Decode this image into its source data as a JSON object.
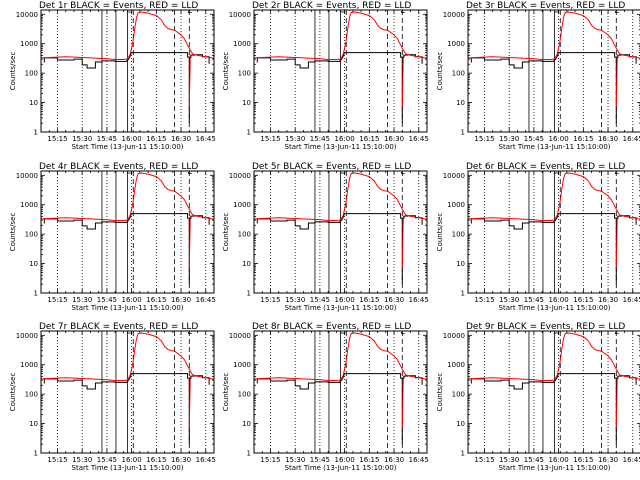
{
  "chart_data": [
    {
      "type": "line",
      "title": "Det 1r BLACK = Events, RED = LLD",
      "xlabel": "Start Time (13-Jun-11 15:10:00)",
      "ylabel": "Counts/sec",
      "x_ticks": [
        "15:15",
        "15:30",
        "15:45",
        "16:00",
        "16:15",
        "16:30",
        "16:45"
      ],
      "y_ticks": [
        "1",
        "10",
        "100",
        "1000",
        "10000"
      ],
      "y_scale": "log",
      "ylim": [
        1,
        14000
      ],
      "series": [
        {
          "name": "BLACK = Events",
          "color": "#000000"
        },
        {
          "name": "RED = LLD",
          "color": "#ff0000"
        }
      ]
    },
    {
      "type": "line",
      "title": "Det 2r BLACK = Events, RED = LLD",
      "xlabel": "Start Time (13-Jun-11 15:10:00)",
      "ylabel": "Counts/sec",
      "x_ticks": [
        "15:15",
        "15:30",
        "15:45",
        "16:00",
        "16:15",
        "16:30",
        "16:45"
      ],
      "y_ticks": [
        "1",
        "10",
        "100",
        "1000",
        "10000"
      ],
      "y_scale": "log",
      "ylim": [
        1,
        14000
      ],
      "series": [
        {
          "name": "BLACK = Events",
          "color": "#000000"
        },
        {
          "name": "RED = LLD",
          "color": "#ff0000"
        }
      ]
    },
    {
      "type": "line",
      "title": "Det 3r BLACK = Events, RED = LLD",
      "xlabel": "Start Time (13-Jun-11 15:10:00)",
      "ylabel": "Counts/sec",
      "x_ticks": [
        "15:15",
        "15:30",
        "15:45",
        "16:00",
        "16:15",
        "16:30",
        "16:45"
      ],
      "y_ticks": [
        "1",
        "10",
        "100",
        "1000",
        "10000"
      ],
      "y_scale": "log",
      "ylim": [
        1,
        14000
      ],
      "series": [
        {
          "name": "BLACK = Events",
          "color": "#000000"
        },
        {
          "name": "RED = LLD",
          "color": "#ff0000"
        }
      ]
    },
    {
      "type": "line",
      "title": "Det 4r BLACK = Events, RED = LLD",
      "xlabel": "Start Time (13-Jun-11 15:10:00)",
      "ylabel": "Counts/sec",
      "x_ticks": [
        "15:15",
        "15:30",
        "15:45",
        "16:00",
        "16:15",
        "16:30",
        "16:45"
      ],
      "y_ticks": [
        "1",
        "10",
        "100",
        "1000",
        "10000"
      ],
      "y_scale": "log",
      "ylim": [
        1,
        14000
      ],
      "series": [
        {
          "name": "BLACK = Events",
          "color": "#000000"
        },
        {
          "name": "RED = LLD",
          "color": "#ff0000"
        }
      ]
    },
    {
      "type": "line",
      "title": "Det 5r BLACK = Events, RED = LLD",
      "xlabel": "Start Time (13-Jun-11 15:10:00)",
      "ylabel": "Counts/sec",
      "x_ticks": [
        "15:15",
        "15:30",
        "15:45",
        "16:00",
        "16:15",
        "16:30",
        "16:45"
      ],
      "y_ticks": [
        "1",
        "10",
        "100",
        "1000",
        "10000"
      ],
      "y_scale": "log",
      "ylim": [
        1,
        14000
      ],
      "series": [
        {
          "name": "BLACK = Events",
          "color": "#000000"
        },
        {
          "name": "RED = LLD",
          "color": "#ff0000"
        }
      ]
    },
    {
      "type": "line",
      "title": "Det 6r BLACK = Events, RED = LLD",
      "xlabel": "Start Time (13-Jun-11 15:10:00)",
      "ylabel": "Counts/sec",
      "x_ticks": [
        "15:15",
        "15:30",
        "15:45",
        "16:00",
        "16:15",
        "16:30",
        "16:45"
      ],
      "y_ticks": [
        "1",
        "10",
        "100",
        "1000",
        "10000"
      ],
      "y_scale": "log",
      "ylim": [
        1,
        14000
      ],
      "series": [
        {
          "name": "BLACK = Events",
          "color": "#000000"
        },
        {
          "name": "RED = LLD",
          "color": "#ff0000"
        }
      ]
    },
    {
      "type": "line",
      "title": "Det 7r BLACK = Events, RED = LLD",
      "xlabel": "Start Time (13-Jun-11 15:10:00)",
      "ylabel": "Counts/sec",
      "x_ticks": [
        "15:15",
        "15:30",
        "15:45",
        "16:00",
        "16:15",
        "16:30",
        "16:45"
      ],
      "y_ticks": [
        "1",
        "10",
        "100",
        "1000",
        "10000"
      ],
      "y_scale": "log",
      "ylim": [
        1,
        14000
      ],
      "series": [
        {
          "name": "BLACK = Events",
          "color": "#000000"
        },
        {
          "name": "RED = LLD",
          "color": "#ff0000"
        }
      ]
    },
    {
      "type": "line",
      "title": "Det 8r BLACK = Events, RED = LLD",
      "xlabel": "Start Time (13-Jun-11 15:10:00)",
      "ylabel": "Counts/sec",
      "x_ticks": [
        "15:15",
        "15:30",
        "15:45",
        "16:00",
        "16:15",
        "16:30",
        "16:45"
      ],
      "y_ticks": [
        "1",
        "10",
        "100",
        "1000",
        "10000"
      ],
      "y_scale": "log",
      "ylim": [
        1,
        14000
      ],
      "series": [
        {
          "name": "BLACK = Events",
          "color": "#000000"
        },
        {
          "name": "RED = LLD",
          "color": "#ff0000"
        }
      ]
    },
    {
      "type": "line",
      "title": "Det 9r BLACK = Events, RED = LLD",
      "xlabel": "Start Time (13-Jun-11 15:10:00)",
      "ylabel": "Counts/sec",
      "x_ticks": [
        "15:15",
        "15:30",
        "15:45",
        "16:00",
        "16:15",
        "16:30",
        "16:45"
      ],
      "y_ticks": [
        "1",
        "10",
        "100",
        "1000",
        "10000"
      ],
      "y_scale": "log",
      "ylim": [
        1,
        14000
      ],
      "series": [
        {
          "name": "BLACK = Events",
          "color": "#000000"
        },
        {
          "name": "RED = LLD",
          "color": "#ff0000"
        }
      ]
    }
  ],
  "time_axis": {
    "ticks_min": [
      15,
      30,
      45,
      60,
      75,
      90,
      105
    ],
    "range_min": [
      5,
      110
    ]
  },
  "markers": {
    "dotted_vertical_min": [
      15,
      30,
      45,
      60,
      75,
      90,
      105
    ],
    "solid_vertical_min": [
      42,
      50.5,
      57.5
    ],
    "dashed_vertical_min": [
      61,
      86,
      95
    ]
  },
  "red_lld": {
    "t": [
      5,
      20,
      35,
      45,
      50,
      55,
      57,
      58,
      59,
      60,
      61,
      62,
      63,
      64,
      66,
      70,
      75,
      78,
      80,
      82,
      84,
      86,
      88,
      90,
      92,
      95,
      97,
      100,
      105,
      110
    ],
    "v": [
      330,
      360,
      330,
      310,
      290,
      290,
      300,
      340,
      420,
      700,
      1400,
      3500,
      8000,
      11500,
      12000,
      11000,
      9000,
      6500,
      4200,
      3300,
      3000,
      2900,
      2400,
      2000,
      1500,
      700,
      450,
      400,
      360,
      320
    ]
  },
  "black_events": {
    "t": [
      7,
      7,
      15,
      15,
      25,
      25,
      30,
      30,
      33,
      33,
      38,
      38,
      42,
      42,
      50,
      50,
      57,
      57,
      58,
      59,
      59.5,
      60,
      94,
      94,
      95,
      95,
      96,
      96,
      98,
      98,
      103,
      103,
      107,
      107
    ],
    "v": [
      230,
      330,
      330,
      280,
      280,
      300,
      300,
      190,
      190,
      150,
      150,
      240,
      240,
      260,
      260,
      250,
      250,
      260,
      290,
      360,
      430,
      500,
      500,
      350,
      350,
      340,
      340,
      410,
      410,
      420,
      420,
      360,
      360,
      210
    ]
  },
  "black_spikes": [
    {
      "t": 95,
      "v": 2
    }
  ],
  "red_segments": [
    {
      "t": [
        95,
        95.6
      ],
      "v": [
        7,
        400
      ]
    }
  ],
  "inset_markers": [
    {
      "t0": 57.5,
      "t1": 60.5,
      "v": 12000
    },
    {
      "t0": 94.5,
      "t1": 96.5,
      "v": 11500
    }
  ]
}
